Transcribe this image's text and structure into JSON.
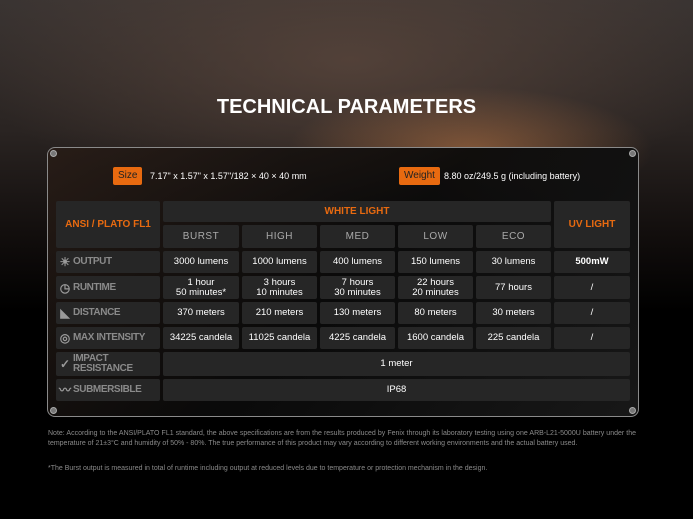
{
  "title": "TECHNICAL PARAMETERS",
  "size": {
    "label": "Size",
    "value": "7.17\" x 1.57\" x 1.57\"/182 × 40 × 40 mm"
  },
  "weight": {
    "label": "Weight",
    "value": "8.80 oz/249.5 g (including battery)"
  },
  "accent": "#e86a10",
  "table": {
    "standard": "ANSI / PLATO FL1",
    "white_light": "WHITE LIGHT",
    "uv_light": "UV LIGHT",
    "modes": [
      "BURST",
      "HIGH",
      "MED",
      "LOW",
      "ECO"
    ],
    "rows": [
      {
        "label": "OUTPUT",
        "icon": "brightness-icon",
        "values": [
          "3000 lumens",
          "1000 lumens",
          "400 lumens",
          "150 lumens",
          "30 lumens"
        ],
        "uv": "500mW"
      },
      {
        "label": "RUNTIME",
        "icon": "clock-icon",
        "values": [
          [
            "1 hour",
            "50 minutes*"
          ],
          [
            "3 hours",
            "10 minutes"
          ],
          [
            "7 hours",
            "30 minutes"
          ],
          [
            "22 hours",
            "20 minutes"
          ],
          [
            "77 hours"
          ]
        ],
        "uv": "/"
      },
      {
        "label": "DISTANCE",
        "icon": "beam-distance-icon",
        "values": [
          "370 meters",
          "210 meters",
          "130 meters",
          "80 meters",
          "30 meters"
        ],
        "uv": "/"
      },
      {
        "label": "MAX INTENSITY",
        "icon": "target-icon",
        "values": [
          "34225 candela",
          "11025 candela",
          "4225 candela",
          "1600 candela",
          "225 candela"
        ],
        "uv": "/"
      }
    ],
    "impact": {
      "label1": "IMPACT",
      "label2": "RESISTANCE",
      "icon": "impact-icon",
      "value": "1 meter"
    },
    "submersible": {
      "label": "SUBMERSIBLE",
      "icon": "water-icon",
      "value": "IP68"
    }
  },
  "notes": {
    "note": "Note: According to the ANSI/PLATO FL1 standard, the above specifications are from the results produced by Fenix through its laboratory testing using one ARB-L21-5000U battery under the temperature of 21±3°C and humidity of 50% - 80%. The true performance of this product may vary according to different working environments and the actual battery used.",
    "burst": "*The Burst output is measured in total of runtime including output at reduced levels due to temperature or protection mechanism in the design."
  }
}
